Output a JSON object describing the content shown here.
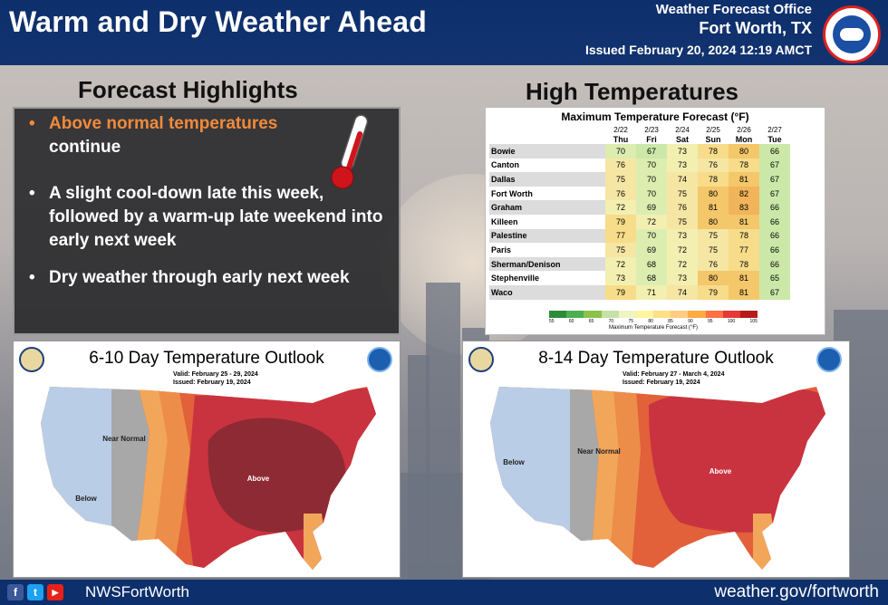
{
  "header": {
    "title": "Warm and Dry Weather Ahead",
    "office_line": "Weather Forecast Office",
    "location": "Fort Worth, TX",
    "issued": "Issued February 20, 2024 12:19 AMCT"
  },
  "highlights": {
    "heading": "Forecast Highlights",
    "bullet": "•",
    "item1_highlight": "Above normal temperatures",
    "item1_rest": "continue",
    "item2": "A slight cool-down late this week, followed by a warm-up late weekend into early next week",
    "item3": "Dry weather through early next week"
  },
  "temps": {
    "heading": "High Temperatures",
    "table_title": "Maximum Temperature Forecast (°F)",
    "dates": [
      "2/22",
      "2/23",
      "2/24",
      "2/25",
      "2/26",
      "2/27"
    ],
    "days": [
      "Thu",
      "Fri",
      "Sat",
      "Sun",
      "Mon",
      "Tue"
    ],
    "rows": [
      {
        "city": "Bowie",
        "values": [
          70,
          67,
          73,
          78,
          80,
          66
        ]
      },
      {
        "city": "Canton",
        "values": [
          76,
          70,
          73,
          76,
          78,
          67
        ]
      },
      {
        "city": "Dallas",
        "values": [
          75,
          70,
          74,
          78,
          81,
          67
        ]
      },
      {
        "city": "Fort Worth",
        "values": [
          76,
          70,
          75,
          80,
          82,
          67
        ]
      },
      {
        "city": "Graham",
        "values": [
          72,
          69,
          76,
          81,
          83,
          66
        ]
      },
      {
        "city": "Killeen",
        "values": [
          79,
          72,
          75,
          80,
          81,
          66
        ]
      },
      {
        "city": "Palestine",
        "values": [
          77,
          70,
          73,
          75,
          78,
          66
        ]
      },
      {
        "city": "Paris",
        "values": [
          75,
          69,
          72,
          75,
          77,
          66
        ]
      },
      {
        "city": "Sherman/Denison",
        "values": [
          72,
          68,
          72,
          76,
          78,
          66
        ]
      },
      {
        "city": "Stephenville",
        "values": [
          73,
          68,
          73,
          80,
          81,
          65
        ]
      },
      {
        "city": "Waco",
        "values": [
          79,
          71,
          74,
          79,
          81,
          67
        ]
      }
    ],
    "legend_ticks": [
      "55",
      "60",
      "65",
      "70",
      "75",
      "80",
      "85",
      "90",
      "95",
      "100",
      "105"
    ],
    "legend_caption": "Maximum Temperature Forecast (°F)"
  },
  "outlook_610": {
    "title": "6-10 Day Temperature Outlook",
    "valid_label": "Valid:",
    "valid": "February 25 - 29, 2024",
    "issued_label": "Issued:",
    "issued": "February 19, 2024",
    "label_near_normal": "Near Normal",
    "label_above": "Above",
    "label_below": "Below"
  },
  "outlook_814": {
    "title": "8-14 Day Temperature Outlook",
    "valid_label": "Valid:",
    "valid": "February 27 - March 4, 2024",
    "issued_label": "Issued:",
    "issued": "February 19, 2024",
    "label_near_normal": "Near Normal",
    "label_above": "Above",
    "label_below": "Below"
  },
  "footer": {
    "handle": "NWSFortWorth",
    "url": "weather.gov/fortworth",
    "facebook": "f",
    "twitter": "t",
    "youtube": "▶"
  },
  "colors": {
    "header_bg": "#0d2f6b",
    "accent_orange": "#f08a3c",
    "below": "#b9cde6",
    "near_normal": "#a8a8a8",
    "above_light": "#f2a65a",
    "above_mid": "#e2603a",
    "above_strong": "#c9333f",
    "above_darkest": "#8e2a33"
  }
}
